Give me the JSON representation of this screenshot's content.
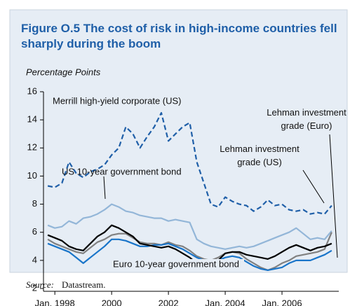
{
  "chart_data": {
    "type": "line",
    "title": "Figure O.5  The cost of risk in high-income countries fell sharply during the boom",
    "y_label": "Percentage Points",
    "source_label": "Source:",
    "source": "Datastream.",
    "xlim": [
      1997.6,
      2008.0
    ],
    "xticks": [
      {
        "value": 1998,
        "label": "Jan. 1998"
      },
      2000,
      2002,
      {
        "value": 2004,
        "label": "Jan. 2004"
      },
      {
        "value": 2006,
        "label": "Jan. 2006"
      }
    ],
    "ylim": [
      2,
      16
    ],
    "yticks": [
      2,
      4,
      6,
      8,
      10,
      12,
      14,
      16
    ],
    "x": [
      1997.75,
      1998,
      1998.25,
      1998.5,
      1998.75,
      1999,
      1999.25,
      1999.5,
      1999.75,
      2000,
      2000.25,
      2000.5,
      2000.75,
      2001,
      2001.25,
      2001.5,
      2001.75,
      2002,
      2002.25,
      2002.5,
      2002.75,
      2003,
      2003.25,
      2003.5,
      2003.75,
      2004,
      2004.25,
      2004.5,
      2004.75,
      2005,
      2005.25,
      2005.5,
      2005.75,
      2006,
      2006.25,
      2006.5,
      2006.75,
      2007,
      2007.25,
      2007.5,
      2007.75
    ],
    "series": [
      {
        "name": "Merrill high-yield corporate (US)",
        "color": "#1f5fa8",
        "dashed": true,
        "values": [
          9.3,
          9.2,
          9.5,
          11.0,
          10.2,
          9.9,
          10.3,
          10.5,
          10.8,
          11.5,
          12.0,
          13.5,
          13.0,
          12.0,
          12.8,
          13.5,
          14.5,
          12.5,
          13.0,
          13.5,
          13.8,
          11.0,
          9.5,
          8.0,
          7.8,
          8.5,
          8.2,
          8.0,
          7.9,
          7.5,
          7.8,
          8.3,
          7.9,
          8.0,
          7.6,
          7.5,
          7.6,
          7.3,
          7.4,
          7.3,
          7.9
        ]
      },
      {
        "name": "Lehman investment grade (US)",
        "color": "#93b6d8",
        "values": [
          6.5,
          6.3,
          6.4,
          6.8,
          6.6,
          7.0,
          7.1,
          7.3,
          7.6,
          8.0,
          7.8,
          7.5,
          7.4,
          7.2,
          7.1,
          7.0,
          7.0,
          6.8,
          6.9,
          6.8,
          6.7,
          5.5,
          5.2,
          5.0,
          4.9,
          4.8,
          4.9,
          5.0,
          4.9,
          5.0,
          5.2,
          5.4,
          5.6,
          5.8,
          6.0,
          6.3,
          5.9,
          5.5,
          5.6,
          5.5,
          6.1
        ]
      },
      {
        "name": "Lehman investment grade (Euro)",
        "color": "#808080",
        "values": [
          5.5,
          5.2,
          5.0,
          4.8,
          4.6,
          4.5,
          4.9,
          5.3,
          5.5,
          5.8,
          5.9,
          5.9,
          5.6,
          5.3,
          5.2,
          5.2,
          5.1,
          5.3,
          5.1,
          5.0,
          4.7,
          4.3,
          4.1,
          4.0,
          4.2,
          4.5,
          4.6,
          4.5,
          4.1,
          3.8,
          3.5,
          3.3,
          3.5,
          3.8,
          4.0,
          4.3,
          4.4,
          4.5,
          4.6,
          4.8,
          6.0
        ]
      },
      {
        "name": "US 10-year government bond",
        "color": "#000000",
        "values": [
          5.8,
          5.6,
          5.4,
          5.0,
          4.8,
          4.7,
          5.2,
          5.7,
          6.0,
          6.5,
          6.3,
          6.0,
          5.7,
          5.2,
          5.1,
          5.0,
          4.9,
          5.0,
          4.8,
          4.5,
          4.2,
          3.8,
          3.7,
          3.5,
          4.0,
          4.5,
          4.6,
          4.6,
          4.4,
          4.3,
          4.2,
          4.1,
          4.3,
          4.6,
          4.9,
          5.1,
          4.9,
          4.7,
          4.9,
          5.0,
          5.2
        ]
      },
      {
        "name": "Euro 10-year government bond",
        "color": "#1a75c9",
        "values": [
          5.2,
          5.0,
          4.8,
          4.6,
          4.2,
          3.8,
          4.2,
          4.6,
          5.0,
          5.5,
          5.5,
          5.4,
          5.2,
          5.0,
          5.0,
          5.1,
          5.1,
          5.2,
          5.0,
          4.8,
          4.5,
          4.2,
          4.0,
          3.8,
          4.0,
          4.2,
          4.3,
          4.2,
          3.9,
          3.6,
          3.4,
          3.3,
          3.4,
          3.5,
          3.8,
          4.0,
          4.0,
          4.0,
          4.2,
          4.4,
          4.7
        ]
      }
    ]
  }
}
